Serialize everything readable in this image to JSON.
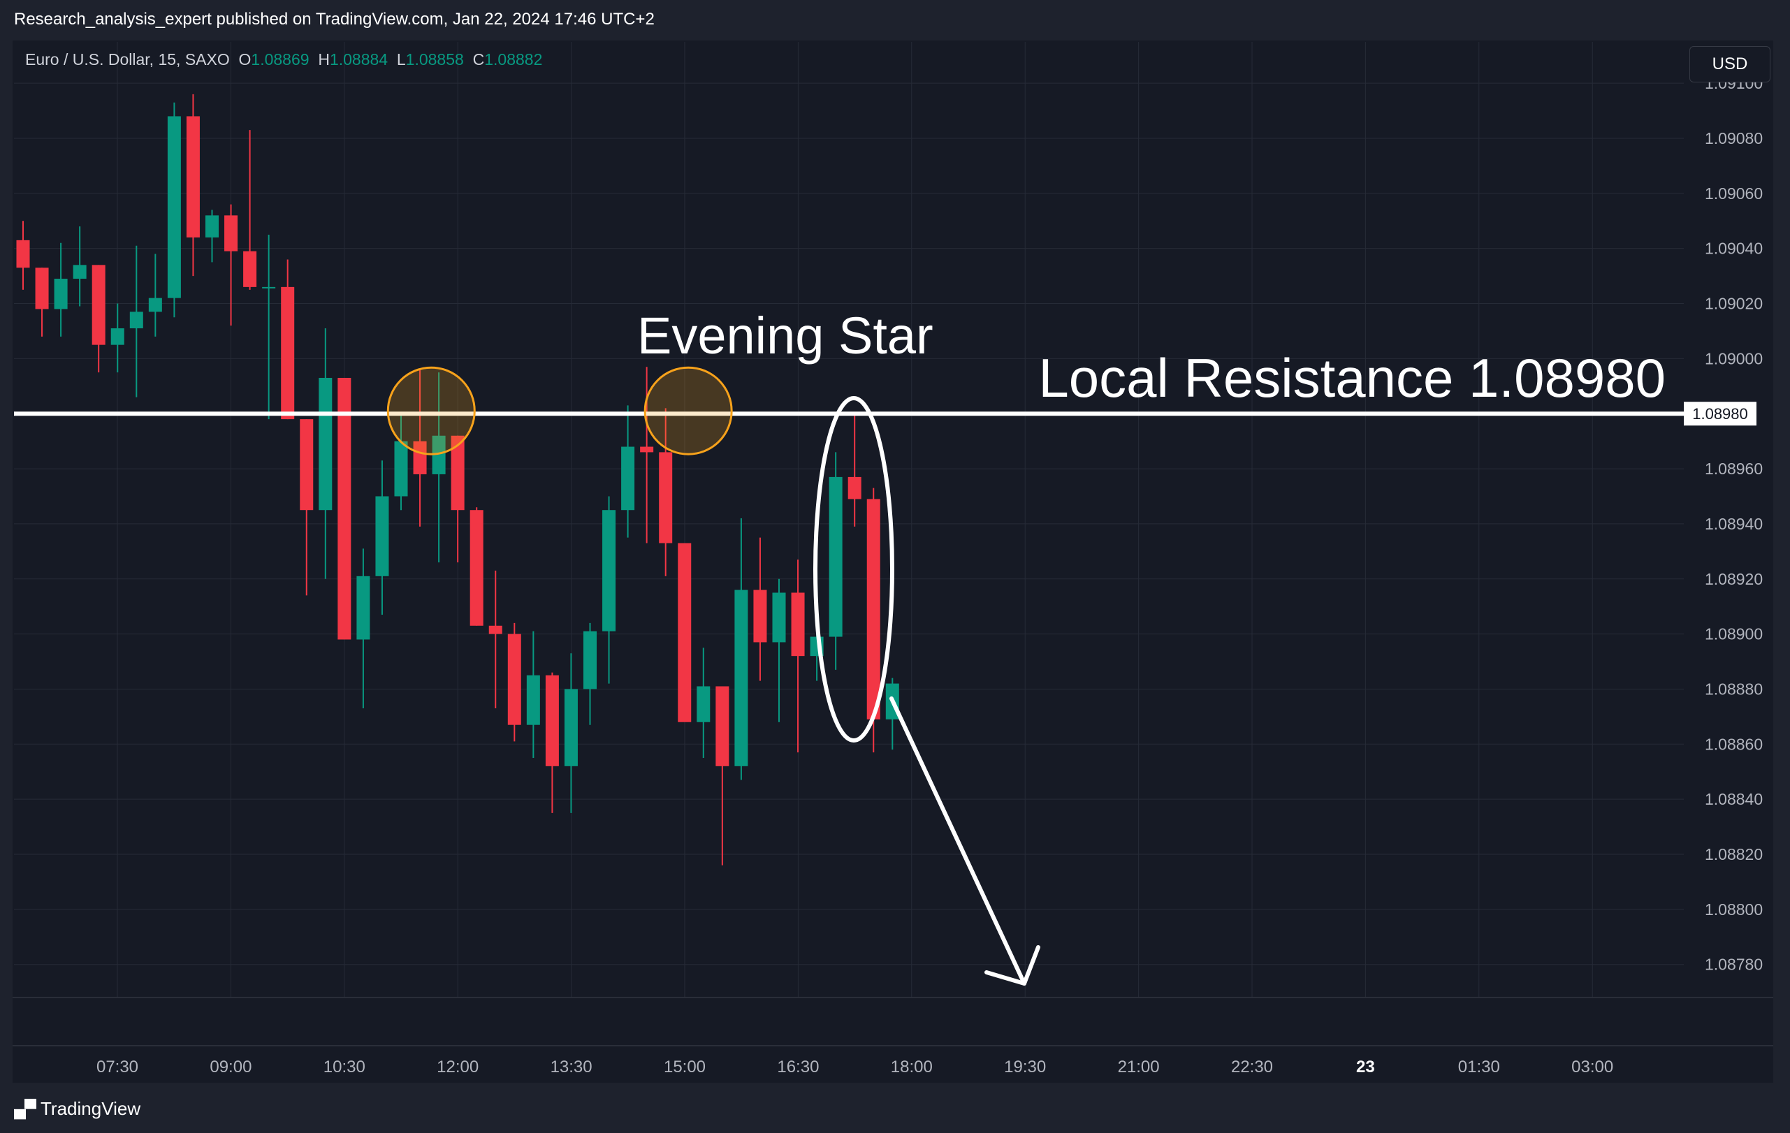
{
  "header": {
    "publisher_line": "Research_analysis_expert published on TradingView.com, Jan 22, 2024 17:46 UTC+2"
  },
  "legend": {
    "symbol": "Euro / U.S. Dollar, 15, SAXO",
    "open_label": "O",
    "open": "1.08869",
    "high_label": "H",
    "high": "1.08884",
    "low_label": "L",
    "low": "1.08858",
    "close_label": "C",
    "close": "1.08882"
  },
  "currency_button": "USD",
  "footer": {
    "brand": "TradingView"
  },
  "colors": {
    "background": "#161a25",
    "bull": "#089981",
    "bear": "#f23645",
    "grid": "#262b37",
    "axis_text": "#b2b5be",
    "annotation": "#ffffff",
    "highlight_circle": "#f7a21b"
  },
  "chart_data": {
    "type": "candlestick",
    "interval": "15",
    "y_ticks": [
      "1.09100",
      "1.09080",
      "1.09060",
      "1.09040",
      "1.09020",
      "1.09000",
      "1.08960",
      "1.08940",
      "1.08920",
      "1.08900",
      "1.08880",
      "1.08860",
      "1.08840",
      "1.08820",
      "1.08800",
      "1.08780"
    ],
    "ylim": [
      1.08768,
      1.09115
    ],
    "x_ticks": [
      {
        "label": "07:30",
        "bold": false
      },
      {
        "label": "09:00",
        "bold": false
      },
      {
        "label": "10:30",
        "bold": false
      },
      {
        "label": "12:00",
        "bold": false
      },
      {
        "label": "13:30",
        "bold": false
      },
      {
        "label": "15:00",
        "bold": false
      },
      {
        "label": "16:30",
        "bold": false
      },
      {
        "label": "18:00",
        "bold": false
      },
      {
        "label": "19:30",
        "bold": false
      },
      {
        "label": "21:00",
        "bold": false
      },
      {
        "label": "22:30",
        "bold": false
      },
      {
        "label": "23",
        "bold": true
      },
      {
        "label": "01:30",
        "bold": false
      },
      {
        "label": "03:00",
        "bold": false
      }
    ],
    "candles": [
      {
        "o": 1.09043,
        "h": 1.0905,
        "l": 1.09025,
        "c": 1.09033
      },
      {
        "o": 1.09033,
        "h": 1.09033,
        "l": 1.09008,
        "c": 1.09018
      },
      {
        "o": 1.09018,
        "h": 1.09042,
        "l": 1.09008,
        "c": 1.09029
      },
      {
        "o": 1.09029,
        "h": 1.09048,
        "l": 1.09019,
        "c": 1.09034
      },
      {
        "o": 1.09034,
        "h": 1.09034,
        "l": 1.08995,
        "c": 1.09005
      },
      {
        "o": 1.09005,
        "h": 1.0902,
        "l": 1.08995,
        "c": 1.09011
      },
      {
        "o": 1.09011,
        "h": 1.09041,
        "l": 1.08986,
        "c": 1.09017
      },
      {
        "o": 1.09017,
        "h": 1.09038,
        "l": 1.09008,
        "c": 1.09022
      },
      {
        "o": 1.09022,
        "h": 1.09093,
        "l": 1.09015,
        "c": 1.09088
      },
      {
        "o": 1.09088,
        "h": 1.09096,
        "l": 1.0903,
        "c": 1.09044
      },
      {
        "o": 1.09044,
        "h": 1.09054,
        "l": 1.09035,
        "c": 1.09052
      },
      {
        "o": 1.09052,
        "h": 1.09056,
        "l": 1.09012,
        "c": 1.09039
      },
      {
        "o": 1.09039,
        "h": 1.09083,
        "l": 1.09025,
        "c": 1.09026
      },
      {
        "o": 1.09026,
        "h": 1.09045,
        "l": 1.08978,
        "c": 1.09026
      },
      {
        "o": 1.09026,
        "h": 1.09036,
        "l": 1.08978,
        "c": 1.08978
      },
      {
        "o": 1.08978,
        "h": 1.08978,
        "l": 1.08914,
        "c": 1.08945
      },
      {
        "o": 1.08945,
        "h": 1.09011,
        "l": 1.0892,
        "c": 1.08993
      },
      {
        "o": 1.08993,
        "h": 1.08993,
        "l": 1.08898,
        "c": 1.08898
      },
      {
        "o": 1.08898,
        "h": 1.08931,
        "l": 1.08873,
        "c": 1.08921
      },
      {
        "o": 1.08921,
        "h": 1.08963,
        "l": 1.08907,
        "c": 1.0895
      },
      {
        "o": 1.0895,
        "h": 1.0898,
        "l": 1.08945,
        "c": 1.0897
      },
      {
        "o": 1.0897,
        "h": 1.08996,
        "l": 1.08939,
        "c": 1.08958
      },
      {
        "o": 1.08958,
        "h": 1.08995,
        "l": 1.08926,
        "c": 1.08972
      },
      {
        "o": 1.08972,
        "h": 1.08972,
        "l": 1.08926,
        "c": 1.08945
      },
      {
        "o": 1.08945,
        "h": 1.08946,
        "l": 1.08903,
        "c": 1.08903
      },
      {
        "o": 1.08903,
        "h": 1.08923,
        "l": 1.08873,
        "c": 1.089
      },
      {
        "o": 1.089,
        "h": 1.08904,
        "l": 1.08861,
        "c": 1.08867
      },
      {
        "o": 1.08867,
        "h": 1.08901,
        "l": 1.08855,
        "c": 1.08885
      },
      {
        "o": 1.08885,
        "h": 1.08886,
        "l": 1.08835,
        "c": 1.08852
      },
      {
        "o": 1.08852,
        "h": 1.08893,
        "l": 1.08835,
        "c": 1.0888
      },
      {
        "o": 1.0888,
        "h": 1.08904,
        "l": 1.08867,
        "c": 1.08901
      },
      {
        "o": 1.08901,
        "h": 1.0895,
        "l": 1.08882,
        "c": 1.08945
      },
      {
        "o": 1.08945,
        "h": 1.08983,
        "l": 1.08935,
        "c": 1.08968
      },
      {
        "o": 1.08968,
        "h": 1.08997,
        "l": 1.08933,
        "c": 1.08966
      },
      {
        "o": 1.08966,
        "h": 1.08982,
        "l": 1.08921,
        "c": 1.08933
      },
      {
        "o": 1.08933,
        "h": 1.08933,
        "l": 1.08869,
        "c": 1.08868
      },
      {
        "o": 1.08868,
        "h": 1.08895,
        "l": 1.08855,
        "c": 1.08881
      },
      {
        "o": 1.08881,
        "h": 1.08881,
        "l": 1.08816,
        "c": 1.08852
      },
      {
        "o": 1.08852,
        "h": 1.08942,
        "l": 1.08847,
        "c": 1.08916
      },
      {
        "o": 1.08916,
        "h": 1.08935,
        "l": 1.08883,
        "c": 1.08897
      },
      {
        "o": 1.08897,
        "h": 1.0892,
        "l": 1.08868,
        "c": 1.08915
      },
      {
        "o": 1.08915,
        "h": 1.08927,
        "l": 1.08857,
        "c": 1.08892
      },
      {
        "o": 1.08892,
        "h": 1.08904,
        "l": 1.08883,
        "c": 1.08899
      },
      {
        "o": 1.08899,
        "h": 1.08966,
        "l": 1.08887,
        "c": 1.08957
      },
      {
        "o": 1.08957,
        "h": 1.0898,
        "l": 1.08939,
        "c": 1.08949
      },
      {
        "o": 1.08949,
        "h": 1.08953,
        "l": 1.08857,
        "c": 1.08869
      },
      {
        "o": 1.08869,
        "h": 1.08884,
        "l": 1.08858,
        "c": 1.08882
      }
    ]
  },
  "annotations": {
    "resistance_label": "Local Resistance 1.08980",
    "resistance_price": "1.08980",
    "pattern_label": "Evening Star"
  }
}
